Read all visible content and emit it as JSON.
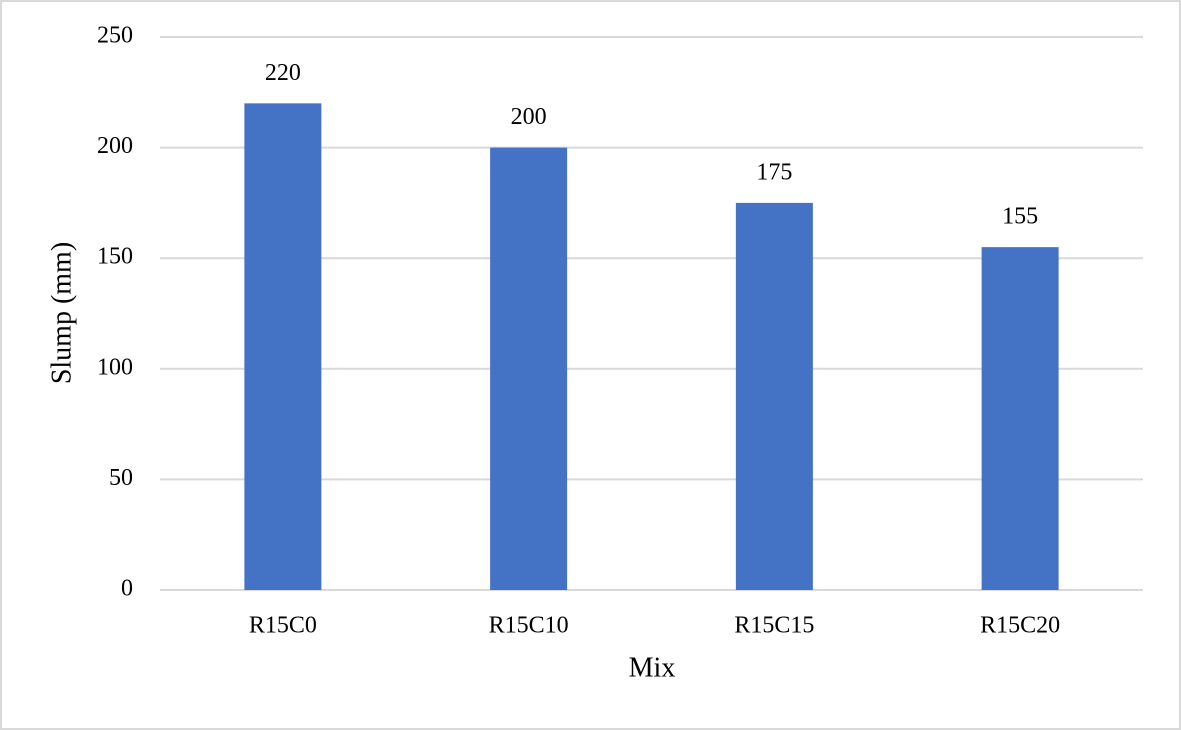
{
  "chart_data": {
    "type": "bar",
    "categories": [
      "R15C0",
      "R15C10",
      "R15C15",
      "R15C20"
    ],
    "values": [
      220,
      200,
      175,
      155
    ],
    "color": "#4472c4",
    "x_label": "Mix",
    "y_label": "Slump (mm)",
    "ylim": [
      0,
      250
    ],
    "yticks": [
      0,
      50,
      100,
      150,
      200,
      250
    ],
    "grid": true,
    "data_labels": true
  }
}
